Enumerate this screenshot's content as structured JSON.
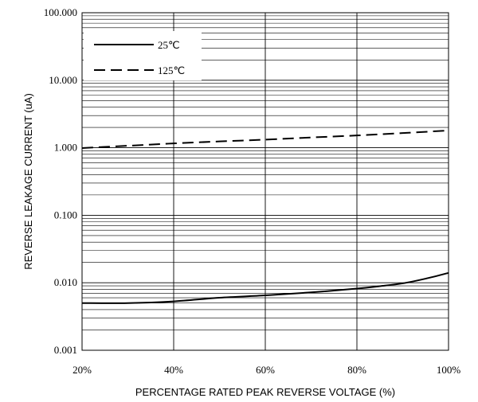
{
  "chart_data": {
    "type": "line",
    "xlabel": "PERCENTAGE RATED PEAK REVERSE VOLTAGE (%)",
    "ylabel": "REVERSE LEAKAGE CURRENT (uA)",
    "xlim": [
      20,
      100
    ],
    "ylim": [
      0.001,
      100
    ],
    "yscale": "log",
    "grid": true,
    "legend_position": "top-left",
    "x_ticks": [
      20,
      40,
      60,
      80,
      100
    ],
    "x_tick_labels": [
      "20%",
      "40%",
      "60%",
      "80%",
      "100%"
    ],
    "y_ticks": [
      0.001,
      0.01,
      0.1,
      1,
      10,
      100
    ],
    "y_tick_labels": [
      "0.001",
      "0.010",
      "0.100",
      "1.000",
      "10.000",
      "100.000"
    ],
    "series": [
      {
        "name": "25℃",
        "style": "solid",
        "color": "#000000",
        "x": [
          20,
          30,
          40,
          50,
          60,
          70,
          80,
          85,
          90,
          95,
          100
        ],
        "y": [
          0.005,
          0.005,
          0.0053,
          0.006,
          0.0065,
          0.0072,
          0.0082,
          0.0089,
          0.0098,
          0.0115,
          0.014
        ]
      },
      {
        "name": "125℃",
        "style": "dashed",
        "color": "#000000",
        "x": [
          20,
          30,
          40,
          50,
          60,
          70,
          80,
          90,
          100
        ],
        "y": [
          0.99,
          1.07,
          1.16,
          1.24,
          1.32,
          1.42,
          1.52,
          1.65,
          1.8
        ]
      }
    ]
  }
}
